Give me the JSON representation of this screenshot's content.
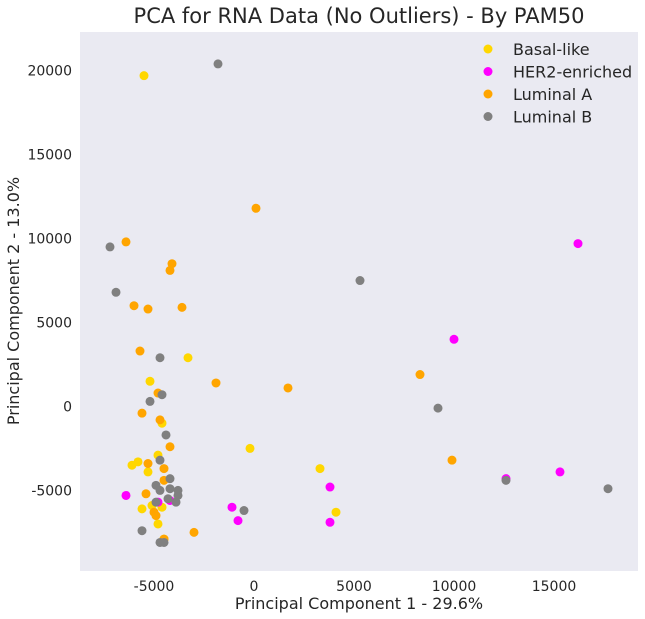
{
  "chart_data": {
    "type": "scatter",
    "title": "PCA for RNA Data (No Outliers) - By PAM50",
    "xlabel": "Principal Component 1 - 29.6%",
    "ylabel": "Principal Component 2 - 13.0%",
    "xlim": [
      -8700,
      19200
    ],
    "ylim": [
      -9800,
      22300
    ],
    "xticks": [
      -5000,
      0,
      5000,
      10000,
      15000
    ],
    "yticks": [
      -5000,
      0,
      5000,
      10000,
      15000,
      20000
    ],
    "background": "#eaeaf2",
    "grid": false,
    "legend_position": "top-right",
    "series": [
      {
        "name": "Basal-like",
        "color": "#ffd700",
        "points": [
          [
            -5500,
            19700
          ],
          [
            -3300,
            2900
          ],
          [
            -5200,
            1500
          ],
          [
            -200,
            -2500
          ],
          [
            -6100,
            -3500
          ],
          [
            -5800,
            -3300
          ],
          [
            -5300,
            -3900
          ],
          [
            -4800,
            -2900
          ],
          [
            -4600,
            -1000
          ],
          [
            -5100,
            -5900
          ],
          [
            -4600,
            -6000
          ],
          [
            -5600,
            -6100
          ],
          [
            -4800,
            -7000
          ],
          [
            -4500,
            -7900
          ],
          [
            3300,
            -3700
          ],
          [
            4100,
            -6300
          ]
        ]
      },
      {
        "name": "HER2-enriched",
        "color": "#ff00ff",
        "points": [
          [
            16200,
            9700
          ],
          [
            10000,
            4000
          ],
          [
            15300,
            -3900
          ],
          [
            12600,
            -4300
          ],
          [
            3800,
            -4800
          ],
          [
            3800,
            -6900
          ],
          [
            -6400,
            -5300
          ],
          [
            -4800,
            -5700
          ],
          [
            -4200,
            -5600
          ],
          [
            -1100,
            -6000
          ],
          [
            -800,
            -6800
          ]
        ]
      },
      {
        "name": "Luminal A",
        "color": "#ffa500",
        "points": [
          [
            100,
            11800
          ],
          [
            -6400,
            9800
          ],
          [
            -4100,
            8500
          ],
          [
            -4200,
            8100
          ],
          [
            -6000,
            6000
          ],
          [
            -5300,
            5800
          ],
          [
            -3600,
            5900
          ],
          [
            -5700,
            3300
          ],
          [
            -1900,
            1400
          ],
          [
            1700,
            1100
          ],
          [
            8300,
            1900
          ],
          [
            -4800,
            800
          ],
          [
            -5600,
            -400
          ],
          [
            -4700,
            -800
          ],
          [
            -4200,
            -2400
          ],
          [
            9900,
            -3200
          ],
          [
            -5300,
            -3400
          ],
          [
            -4500,
            -3700
          ],
          [
            -4500,
            -4400
          ],
          [
            -5400,
            -5200
          ],
          [
            -5000,
            -6300
          ],
          [
            -4900,
            -6500
          ],
          [
            -3000,
            -7500
          ],
          [
            -4500,
            -7900
          ]
        ]
      },
      {
        "name": "Luminal B",
        "color": "#808080",
        "points": [
          [
            -1800,
            20400
          ],
          [
            -7200,
            9500
          ],
          [
            -6900,
            6800
          ],
          [
            5300,
            7500
          ],
          [
            -4700,
            2900
          ],
          [
            -4600,
            700
          ],
          [
            -5200,
            300
          ],
          [
            9200,
            -100
          ],
          [
            -4400,
            -1700
          ],
          [
            -4700,
            -3200
          ],
          [
            -4200,
            -4300
          ],
          [
            -4900,
            -4700
          ],
          [
            -4700,
            -5000
          ],
          [
            -4200,
            -4900
          ],
          [
            -3800,
            -5000
          ],
          [
            -3800,
            -5300
          ],
          [
            -4300,
            -5500
          ],
          [
            -3900,
            -5700
          ],
          [
            -4900,
            -5700
          ],
          [
            -500,
            -6200
          ],
          [
            -5600,
            -7400
          ],
          [
            -4700,
            -8100
          ],
          [
            -4500,
            -8100
          ],
          [
            12600,
            -4400
          ],
          [
            17700,
            -4900
          ]
        ]
      }
    ]
  }
}
